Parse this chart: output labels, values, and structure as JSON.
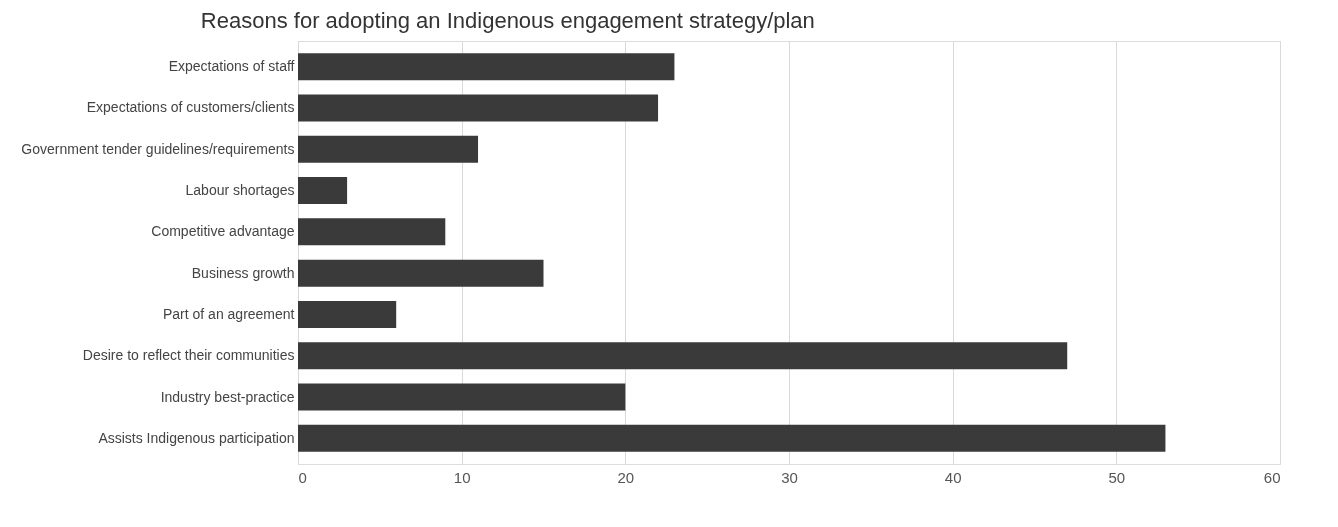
{
  "chart_data": {
    "type": "bar",
    "orientation": "horizontal",
    "title": "Reasons for adopting an Indigenous engagement strategy/plan",
    "categories": [
      "Expectations of staff",
      "Expectations of customers/clients",
      "Government tender guidelines/requirements",
      "Labour shortages",
      "Competitive advantage",
      "Business growth",
      "Part of an agreement",
      "Desire to reflect their communities",
      "Industry best-practice",
      "Assists Indigenous participation"
    ],
    "values": [
      23,
      22,
      11,
      3,
      9,
      15,
      6,
      47,
      20,
      53
    ],
    "color": "#3a3a3a",
    "xlim": [
      0,
      60
    ],
    "xticks": [
      0,
      10,
      20,
      30,
      40,
      50,
      60
    ],
    "grid": "x"
  }
}
